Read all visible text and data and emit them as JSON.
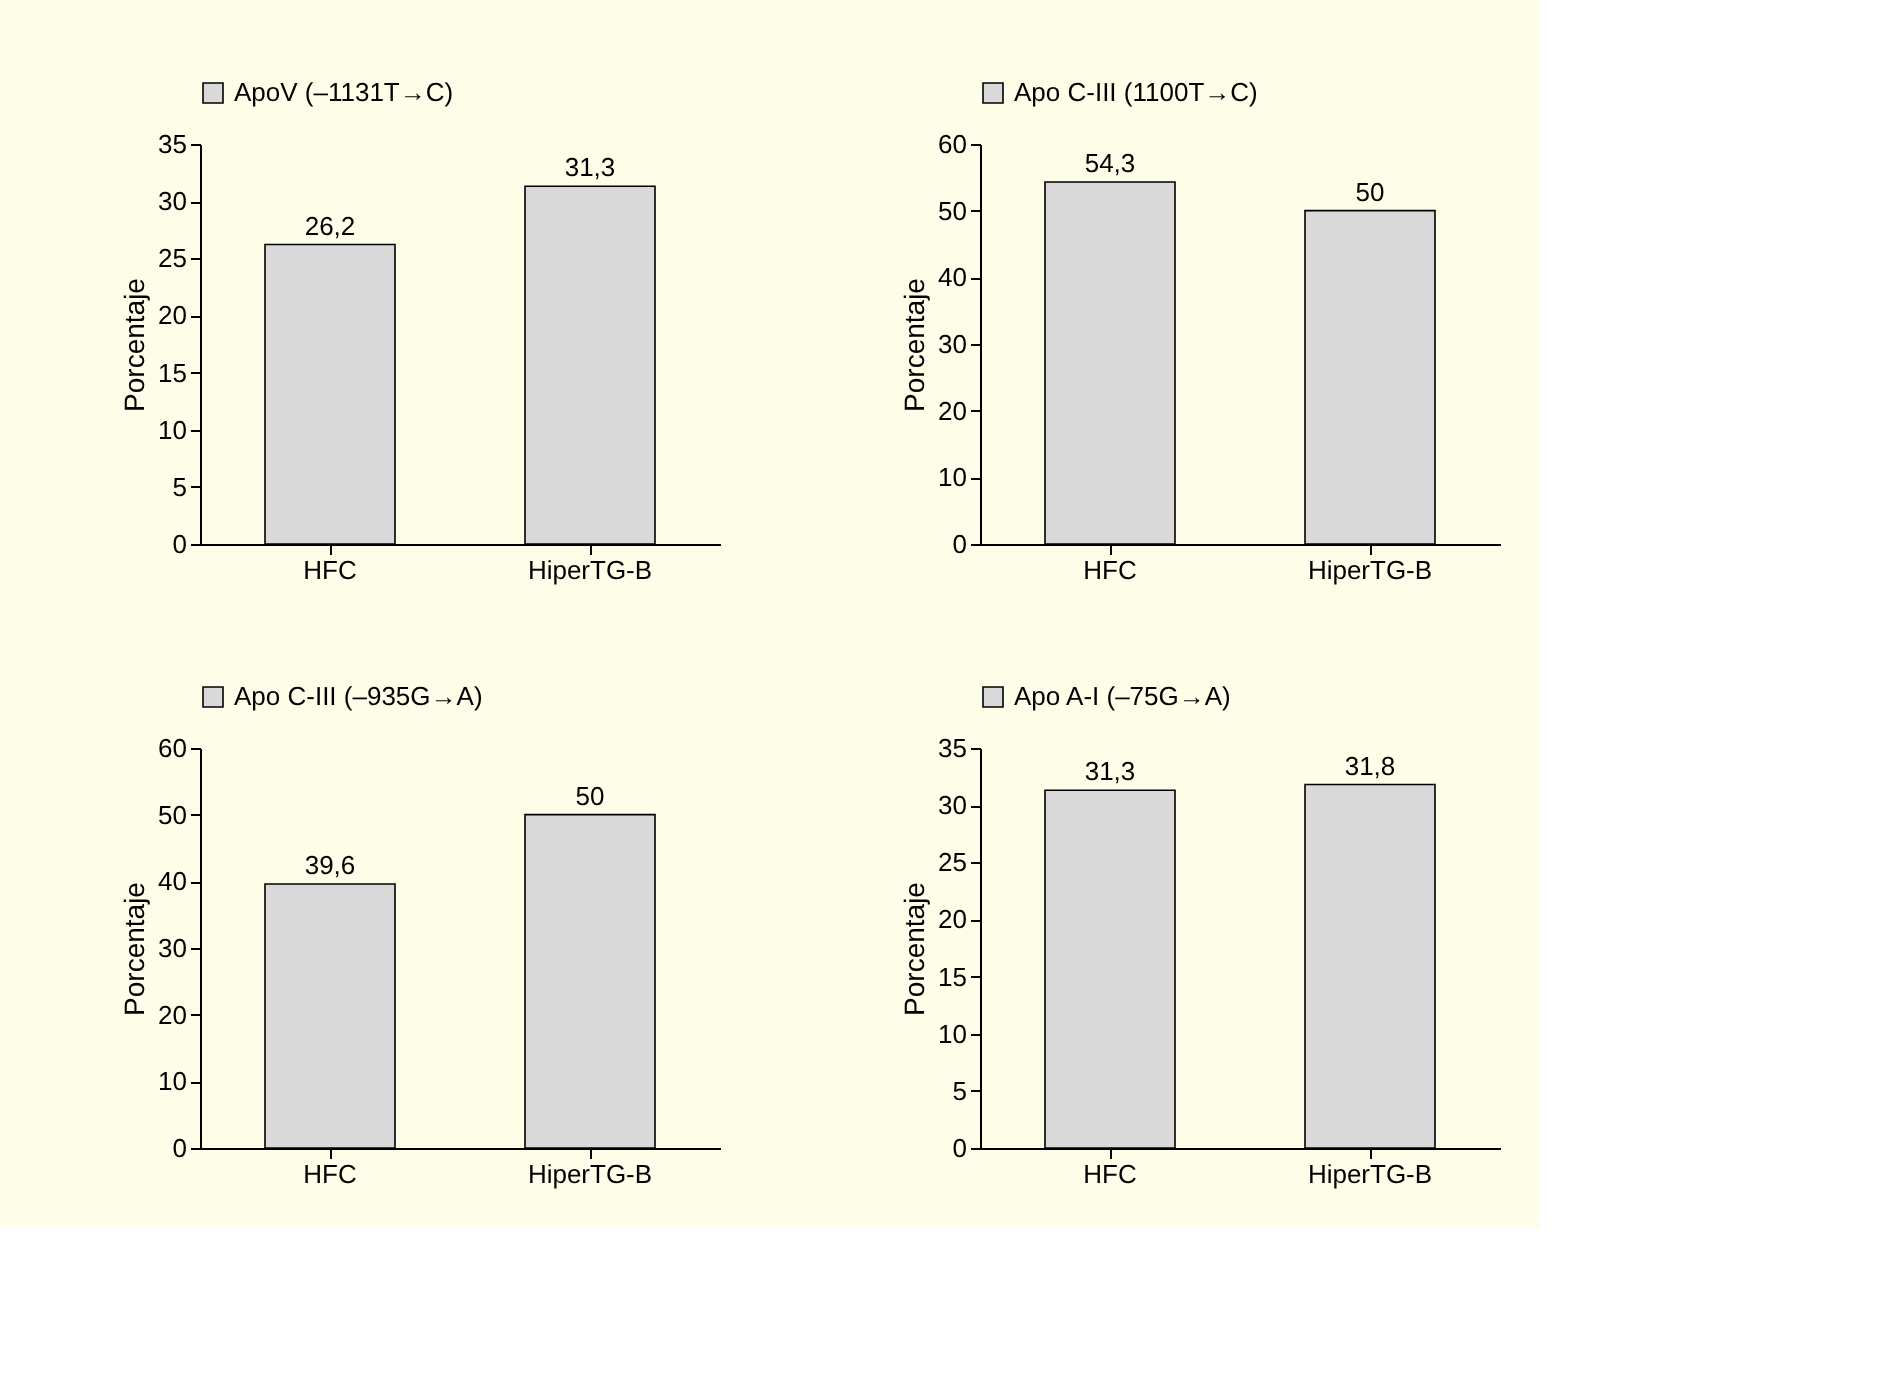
{
  "chart_data": [
    {
      "type": "bar",
      "categories": [
        "HFC",
        "HiperTG-B"
      ],
      "ylabel": "Porcentaje",
      "ylim": [
        0,
        35
      ],
      "yticks": [
        0,
        5,
        10,
        15,
        20,
        25,
        30,
        35
      ],
      "grid": false,
      "legend": "top",
      "series": [
        {
          "name": "ApoV (–1131T→C)",
          "color": "#d9d9d9",
          "values": [
            26.2,
            31.3
          ],
          "value_labels": [
            "26,2",
            "31,3"
          ]
        }
      ]
    },
    {
      "type": "bar",
      "categories": [
        "HFC",
        "HiperTG-B"
      ],
      "ylabel": "Porcentaje",
      "ylim": [
        0,
        60
      ],
      "yticks": [
        0,
        10,
        20,
        30,
        40,
        50,
        60
      ],
      "grid": false,
      "legend": "top",
      "series": [
        {
          "name": "Apo C-III (1100T→C)",
          "color": "#d9d9d9",
          "values": [
            54.3,
            50
          ],
          "value_labels": [
            "54,3",
            "50"
          ]
        }
      ]
    },
    {
      "type": "bar",
      "categories": [
        "HFC",
        "HiperTG-B"
      ],
      "ylabel": "Porcentaje",
      "ylim": [
        0,
        60
      ],
      "yticks": [
        0,
        10,
        20,
        30,
        40,
        50,
        60
      ],
      "grid": false,
      "legend": "top",
      "series": [
        {
          "name": "Apo C-III (–935G→A)",
          "color": "#d9d9d9",
          "values": [
            39.6,
            50
          ],
          "value_labels": [
            "39,6",
            "50"
          ]
        }
      ]
    },
    {
      "type": "bar",
      "categories": [
        "HFC",
        "HiperTG-B"
      ],
      "ylabel": "Porcentaje",
      "ylim": [
        0,
        35
      ],
      "yticks": [
        0,
        5,
        10,
        15,
        20,
        25,
        30,
        35
      ],
      "grid": false,
      "legend": "top",
      "series": [
        {
          "name": "Apo A-I (–75G→A)",
          "color": "#d9d9d9",
          "values": [
            31.3,
            31.8
          ],
          "value_labels": [
            "31,3",
            "31,8"
          ]
        }
      ]
    }
  ]
}
